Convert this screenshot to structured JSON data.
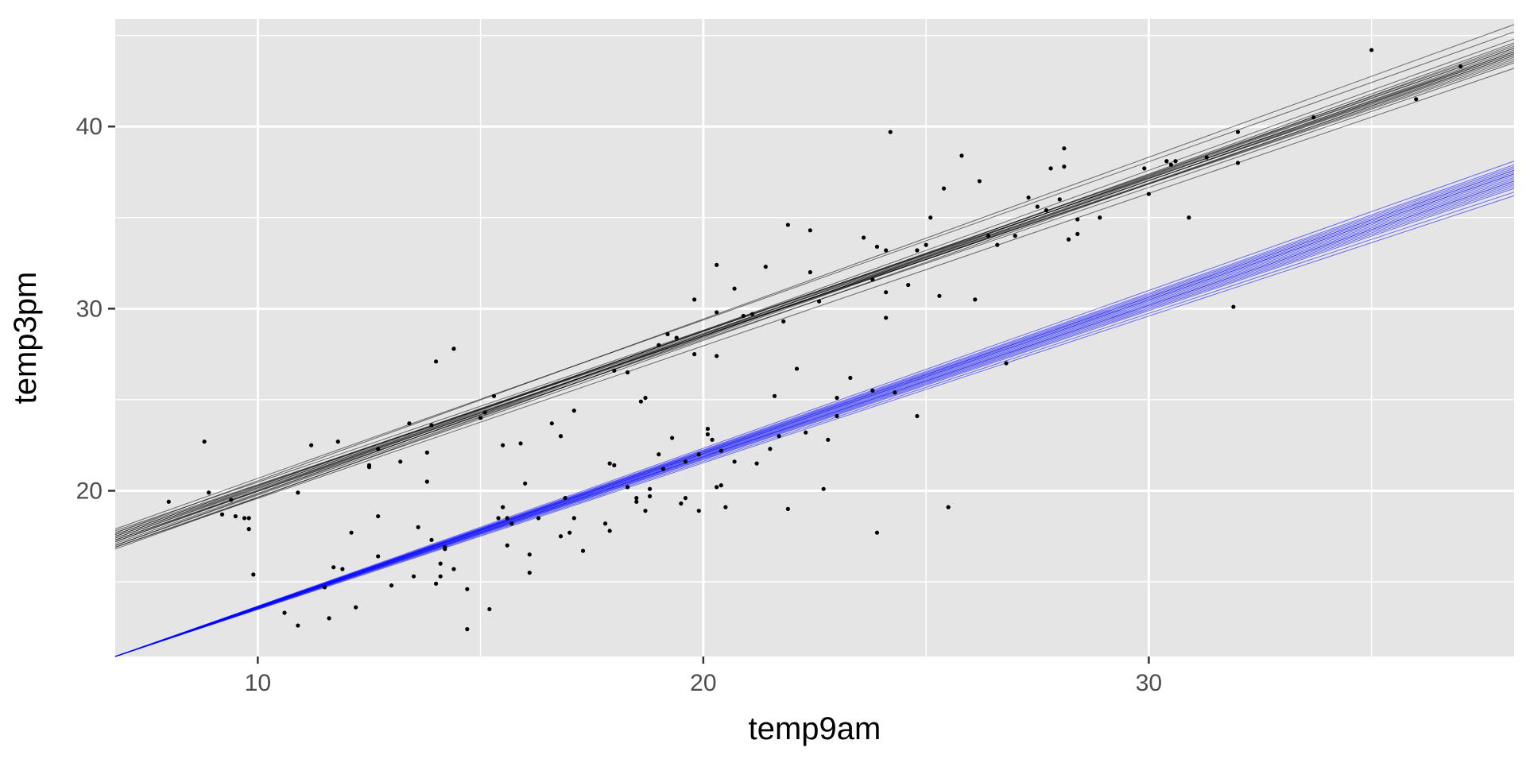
{
  "chart_data": {
    "type": "scatter",
    "xlabel": "temp9am",
    "ylabel": "temp3pm",
    "xlim": [
      6.8,
      38.2
    ],
    "ylim": [
      10.9,
      45.9
    ],
    "x_ticks": [
      10,
      20,
      30
    ],
    "x_tick_labels": [
      "10",
      "20",
      "30"
    ],
    "y_ticks": [
      20,
      30,
      40
    ],
    "y_tick_labels": [
      "20",
      "30",
      "40"
    ],
    "grid": true,
    "colors": {
      "panel": "#e5e5e5",
      "grid": "#ffffff",
      "points": "#000000",
      "line_group_1": "#000000",
      "line_group_2": "#0000ff"
    },
    "points": [
      [
        8.0,
        19.4
      ],
      [
        8.8,
        22.7
      ],
      [
        8.9,
        19.9
      ],
      [
        9.2,
        18.7
      ],
      [
        9.4,
        19.5
      ],
      [
        9.5,
        18.6
      ],
      [
        9.7,
        18.5
      ],
      [
        9.8,
        17.9
      ],
      [
        9.8,
        18.5
      ],
      [
        9.9,
        15.4
      ],
      [
        10.6,
        13.3
      ],
      [
        10.9,
        12.6
      ],
      [
        10.9,
        19.9
      ],
      [
        11.2,
        22.5
      ],
      [
        11.5,
        14.7
      ],
      [
        11.6,
        13.0
      ],
      [
        11.7,
        15.8
      ],
      [
        11.8,
        22.7
      ],
      [
        11.9,
        15.7
      ],
      [
        12.1,
        17.7
      ],
      [
        12.2,
        13.6
      ],
      [
        12.5,
        21.4
      ],
      [
        12.5,
        21.3
      ],
      [
        12.7,
        22.3
      ],
      [
        12.7,
        18.6
      ],
      [
        12.7,
        16.4
      ],
      [
        13.0,
        14.8
      ],
      [
        13.2,
        21.6
      ],
      [
        13.4,
        23.7
      ],
      [
        13.5,
        15.3
      ],
      [
        13.6,
        18.0
      ],
      [
        13.8,
        22.1
      ],
      [
        13.8,
        20.5
      ],
      [
        13.9,
        23.6
      ],
      [
        13.9,
        17.3
      ],
      [
        14.0,
        14.9
      ],
      [
        14.0,
        27.1
      ],
      [
        14.1,
        15.3
      ],
      [
        14.1,
        16.0
      ],
      [
        14.2,
        16.8
      ],
      [
        14.2,
        16.9
      ],
      [
        14.4,
        15.7
      ],
      [
        14.4,
        27.8
      ],
      [
        14.7,
        14.6
      ],
      [
        14.7,
        12.4
      ],
      [
        15.0,
        24.0
      ],
      [
        15.1,
        24.3
      ],
      [
        15.2,
        13.5
      ],
      [
        15.3,
        25.2
      ],
      [
        15.4,
        18.5
      ],
      [
        15.5,
        19.1
      ],
      [
        15.5,
        22.5
      ],
      [
        15.6,
        18.5
      ],
      [
        15.6,
        17.0
      ],
      [
        15.7,
        18.2
      ],
      [
        15.9,
        22.6
      ],
      [
        16.0,
        20.4
      ],
      [
        16.1,
        15.5
      ],
      [
        16.1,
        16.5
      ],
      [
        16.3,
        18.5
      ],
      [
        16.6,
        23.7
      ],
      [
        16.8,
        17.5
      ],
      [
        16.8,
        23.0
      ],
      [
        16.9,
        19.6
      ],
      [
        17.0,
        17.7
      ],
      [
        17.1,
        24.4
      ],
      [
        17.1,
        18.5
      ],
      [
        17.3,
        16.7
      ],
      [
        17.8,
        18.2
      ],
      [
        17.9,
        17.8
      ],
      [
        17.9,
        21.5
      ],
      [
        18.0,
        26.6
      ],
      [
        18.0,
        21.4
      ],
      [
        18.3,
        26.5
      ],
      [
        18.3,
        20.2
      ],
      [
        18.5,
        19.4
      ],
      [
        18.5,
        19.6
      ],
      [
        18.6,
        24.9
      ],
      [
        18.7,
        18.9
      ],
      [
        18.7,
        25.1
      ],
      [
        18.8,
        20.1
      ],
      [
        18.8,
        19.7
      ],
      [
        19.0,
        22.0
      ],
      [
        19.0,
        28.0
      ],
      [
        19.1,
        21.2
      ],
      [
        19.2,
        28.6
      ],
      [
        19.3,
        22.9
      ],
      [
        19.4,
        28.4
      ],
      [
        19.5,
        19.3
      ],
      [
        19.6,
        21.6
      ],
      [
        19.6,
        19.6
      ],
      [
        19.8,
        27.5
      ],
      [
        19.8,
        30.5
      ],
      [
        19.9,
        22.0
      ],
      [
        19.9,
        18.9
      ],
      [
        20.1,
        23.4
      ],
      [
        20.1,
        23.1
      ],
      [
        20.2,
        22.8
      ],
      [
        20.3,
        32.4
      ],
      [
        20.3,
        29.8
      ],
      [
        20.3,
        27.4
      ],
      [
        20.3,
        20.2
      ],
      [
        20.4,
        20.3
      ],
      [
        20.4,
        22.2
      ],
      [
        20.5,
        19.1
      ],
      [
        20.7,
        31.1
      ],
      [
        20.7,
        21.6
      ],
      [
        20.9,
        29.6
      ],
      [
        21.1,
        29.7
      ],
      [
        21.2,
        21.5
      ],
      [
        21.4,
        32.3
      ],
      [
        21.5,
        22.3
      ],
      [
        21.6,
        25.2
      ],
      [
        21.7,
        23.0
      ],
      [
        21.8,
        29.3
      ],
      [
        21.9,
        34.6
      ],
      [
        21.9,
        19.0
      ],
      [
        22.1,
        26.7
      ],
      [
        22.3,
        23.2
      ],
      [
        22.4,
        32.0
      ],
      [
        22.4,
        34.3
      ],
      [
        22.6,
        30.4
      ],
      [
        22.7,
        20.1
      ],
      [
        22.8,
        22.8
      ],
      [
        23.0,
        25.1
      ],
      [
        23.0,
        24.1
      ],
      [
        23.3,
        26.2
      ],
      [
        23.6,
        33.9
      ],
      [
        23.8,
        31.6
      ],
      [
        23.8,
        25.5
      ],
      [
        23.9,
        33.4
      ],
      [
        23.9,
        17.7
      ],
      [
        24.1,
        33.2
      ],
      [
        24.1,
        30.9
      ],
      [
        24.1,
        29.5
      ],
      [
        24.2,
        39.7
      ],
      [
        24.3,
        25.4
      ],
      [
        24.6,
        31.3
      ],
      [
        24.8,
        33.2
      ],
      [
        24.8,
        24.1
      ],
      [
        25.0,
        33.5
      ],
      [
        25.1,
        35.0
      ],
      [
        25.3,
        30.7
      ],
      [
        25.4,
        36.6
      ],
      [
        25.5,
        19.1
      ],
      [
        25.8,
        38.4
      ],
      [
        26.1,
        30.5
      ],
      [
        26.2,
        37.0
      ],
      [
        26.4,
        34.0
      ],
      [
        26.6,
        33.5
      ],
      [
        26.8,
        27.0
      ],
      [
        27.0,
        34.0
      ],
      [
        27.3,
        36.1
      ],
      [
        27.5,
        35.6
      ],
      [
        27.7,
        35.4
      ],
      [
        27.8,
        37.7
      ],
      [
        28.0,
        36.0
      ],
      [
        28.1,
        38.8
      ],
      [
        28.1,
        37.8
      ],
      [
        28.2,
        33.8
      ],
      [
        28.4,
        34.1
      ],
      [
        28.4,
        34.9
      ],
      [
        28.9,
        35.0
      ],
      [
        29.9,
        37.7
      ],
      [
        30.0,
        36.3
      ],
      [
        30.4,
        38.1
      ],
      [
        30.5,
        37.9
      ],
      [
        30.6,
        38.1
      ],
      [
        30.9,
        35.0
      ],
      [
        31.3,
        38.3
      ],
      [
        31.9,
        30.1
      ],
      [
        32.0,
        39.7
      ],
      [
        32.0,
        38.0
      ],
      [
        33.7,
        40.5
      ],
      [
        35.0,
        44.2
      ],
      [
        36.0,
        41.5
      ],
      [
        37.0,
        43.3
      ]
    ],
    "line_groups": [
      {
        "color": "#000000",
        "lines": [
          [
            [
              6.8,
              17.3
            ],
            [
              38.2,
              44.0
            ]
          ],
          [
            [
              6.8,
              17.5
            ],
            [
              38.2,
              44.3
            ]
          ],
          [
            [
              6.8,
              17.0
            ],
            [
              38.2,
              44.1
            ]
          ],
          [
            [
              6.8,
              17.7
            ],
            [
              38.2,
              43.6
            ]
          ],
          [
            [
              6.8,
              16.8
            ],
            [
              38.2,
              44.5
            ]
          ],
          [
            [
              6.8,
              17.4
            ],
            [
              38.2,
              43.8
            ]
          ],
          [
            [
              6.8,
              17.9
            ],
            [
              38.2,
              45.2
            ]
          ],
          [
            [
              6.8,
              16.9
            ],
            [
              38.2,
              43.2
            ]
          ],
          [
            [
              6.8,
              17.2
            ],
            [
              38.2,
              44.8
            ]
          ],
          [
            [
              6.8,
              17.6
            ],
            [
              38.2,
              43.9
            ]
          ],
          [
            [
              6.8,
              17.1
            ],
            [
              38.2,
              44.2
            ]
          ],
          [
            [
              6.8,
              17.8
            ],
            [
              38.2,
              44.0
            ]
          ],
          [
            [
              6.8,
              17.3
            ],
            [
              38.2,
              43.5
            ]
          ],
          [
            [
              6.8,
              17.0
            ],
            [
              38.2,
              44.6
            ]
          ],
          [
            [
              6.8,
              17.5
            ],
            [
              38.2,
              43.7
            ]
          ],
          [
            [
              6.8,
              17.4
            ],
            [
              38.2,
              44.4
            ]
          ],
          [
            [
              6.8,
              17.6
            ],
            [
              38.2,
              44.1
            ]
          ],
          [
            [
              6.8,
              16.9
            ],
            [
              38.2,
              43.9
            ]
          ],
          [
            [
              6.8,
              17.7
            ],
            [
              38.2,
              45.6
            ]
          ],
          [
            [
              6.8,
              17.2
            ],
            [
              38.2,
              44.3
            ]
          ]
        ]
      },
      {
        "color": "#0000ff",
        "lines": [
          [
            [
              6.8,
              10.9
            ],
            [
              38.2,
              37.4
            ]
          ],
          [
            [
              6.8,
              10.9
            ],
            [
              38.2,
              37.0
            ]
          ],
          [
            [
              6.8,
              10.9
            ],
            [
              38.2,
              37.6
            ]
          ],
          [
            [
              6.8,
              10.9
            ],
            [
              38.2,
              36.8
            ]
          ],
          [
            [
              6.8,
              10.9
            ],
            [
              38.2,
              37.2
            ]
          ],
          [
            [
              6.8,
              10.9
            ],
            [
              38.2,
              37.8
            ]
          ],
          [
            [
              6.8,
              10.9
            ],
            [
              38.2,
              36.6
            ]
          ],
          [
            [
              6.8,
              10.9
            ],
            [
              38.2,
              37.5
            ]
          ],
          [
            [
              6.8,
              10.9
            ],
            [
              38.2,
              36.9
            ]
          ],
          [
            [
              6.8,
              10.9
            ],
            [
              38.2,
              37.3
            ]
          ],
          [
            [
              6.8,
              10.9
            ],
            [
              38.2,
              37.1
            ]
          ],
          [
            [
              6.8,
              10.9
            ],
            [
              38.2,
              38.1
            ]
          ],
          [
            [
              6.8,
              10.9
            ],
            [
              38.2,
              36.4
            ]
          ],
          [
            [
              6.8,
              10.9
            ],
            [
              38.2,
              37.7
            ]
          ],
          [
            [
              6.8,
              10.9
            ],
            [
              38.2,
              36.7
            ]
          ],
          [
            [
              6.8,
              10.9
            ],
            [
              38.2,
              37.4
            ]
          ],
          [
            [
              6.8,
              10.9
            ],
            [
              38.2,
              37.9
            ]
          ],
          [
            [
              6.8,
              10.9
            ],
            [
              38.2,
              36.2
            ]
          ],
          [
            [
              6.8,
              10.9
            ],
            [
              38.2,
              37.0
            ]
          ],
          [
            [
              6.8,
              10.9
            ],
            [
              38.2,
              37.6
            ]
          ]
        ]
      }
    ]
  }
}
